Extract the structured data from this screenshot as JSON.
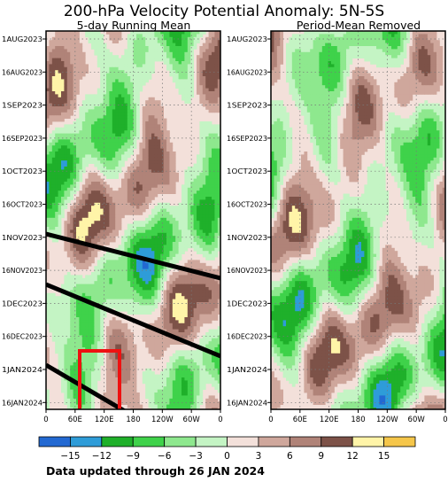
{
  "chart_data": {
    "type": "heatmap",
    "title": "200-hPa Velocity Potential Anomaly: 5N-5S",
    "panels": [
      {
        "subtitle": "5-day Running Mean"
      },
      {
        "subtitle": "Period-Mean Removed"
      }
    ],
    "y_ticks": [
      "1AUG2023",
      "16AUG2023",
      "1SEP2023",
      "16SEP2023",
      "1OCT2023",
      "16OCT2023",
      "1NOV2023",
      "16NOV2023",
      "1DEC2023",
      "16DEC2023",
      "1JAN2024",
      "16JAN2024"
    ],
    "x_ticks": [
      "0",
      "60E",
      "120E",
      "180",
      "120W",
      "60W",
      "0"
    ],
    "colorbar": {
      "tick_labels": [
        "-15",
        "-12",
        "-9",
        "-6",
        "-3",
        "0",
        "3",
        "6",
        "9",
        "12",
        "15"
      ],
      "colors": [
        "#2369d2",
        "#2e9cd8",
        "#1fb02a",
        "#3fd24a",
        "#8ee88e",
        "#c4f4c4",
        "#f3e0da",
        "#cfa79c",
        "#b08378",
        "#7d5248",
        "#fff4a8",
        "#f5c64a"
      ]
    },
    "field_range": [
      -15,
      15
    ],
    "annotations": {
      "trend_lines": [
        {
          "from": [
            "0",
            "1NOV2023"
          ],
          "to": [
            "0",
            "20NOV2023"
          ]
        },
        {
          "from": [
            "0",
            "20NOV2023"
          ],
          "to": [
            "0",
            "28DEC2023"
          ]
        },
        {
          "from": [
            "0",
            "1JAN2024"
          ],
          "to": [
            "150W",
            "28JAN2024"
          ]
        }
      ],
      "highlight_box": {
        "lon_from": "30E",
        "lon_to": "150E",
        "date_from": "1JAN2024",
        "date_to": "26JAN2024"
      }
    },
    "footer": "Data updated through 26 JAN 2024"
  }
}
